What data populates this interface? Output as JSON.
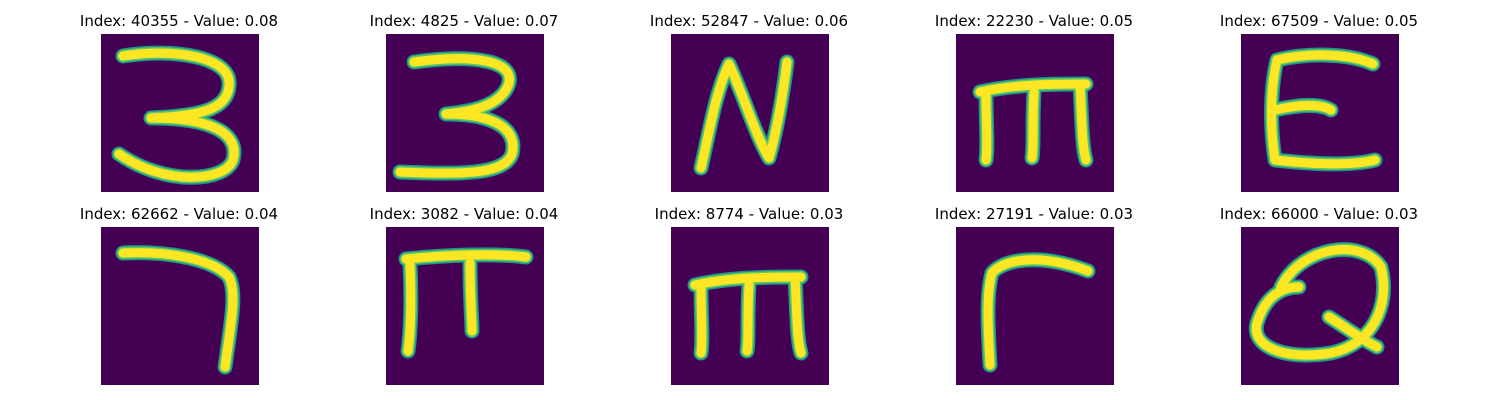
{
  "panels": [
    {
      "index": "40355",
      "value": "0.08",
      "glyph": "three-glyph"
    },
    {
      "index": "4825",
      "value": "0.07",
      "glyph": "three-bold-glyph"
    },
    {
      "index": "52847",
      "value": "0.06",
      "glyph": "n-glyph"
    },
    {
      "index": "22230",
      "value": "0.05",
      "glyph": "m-glyph"
    },
    {
      "index": "67509",
      "value": "0.05",
      "glyph": "e-glyph"
    },
    {
      "index": "62662",
      "value": "0.04",
      "glyph": "seven-glyph"
    },
    {
      "index": "3082",
      "value": "0.04",
      "glyph": "pi-glyph"
    },
    {
      "index": "8774",
      "value": "0.03",
      "glyph": "m-glyph"
    },
    {
      "index": "27191",
      "value": "0.03",
      "glyph": "r-glyph"
    },
    {
      "index": "66000",
      "value": "0.03",
      "glyph": "q-glyph"
    }
  ],
  "colors": {
    "background": "#440154",
    "edge": "#21918c",
    "mid": "#5ec962",
    "stroke": "#fde725"
  }
}
